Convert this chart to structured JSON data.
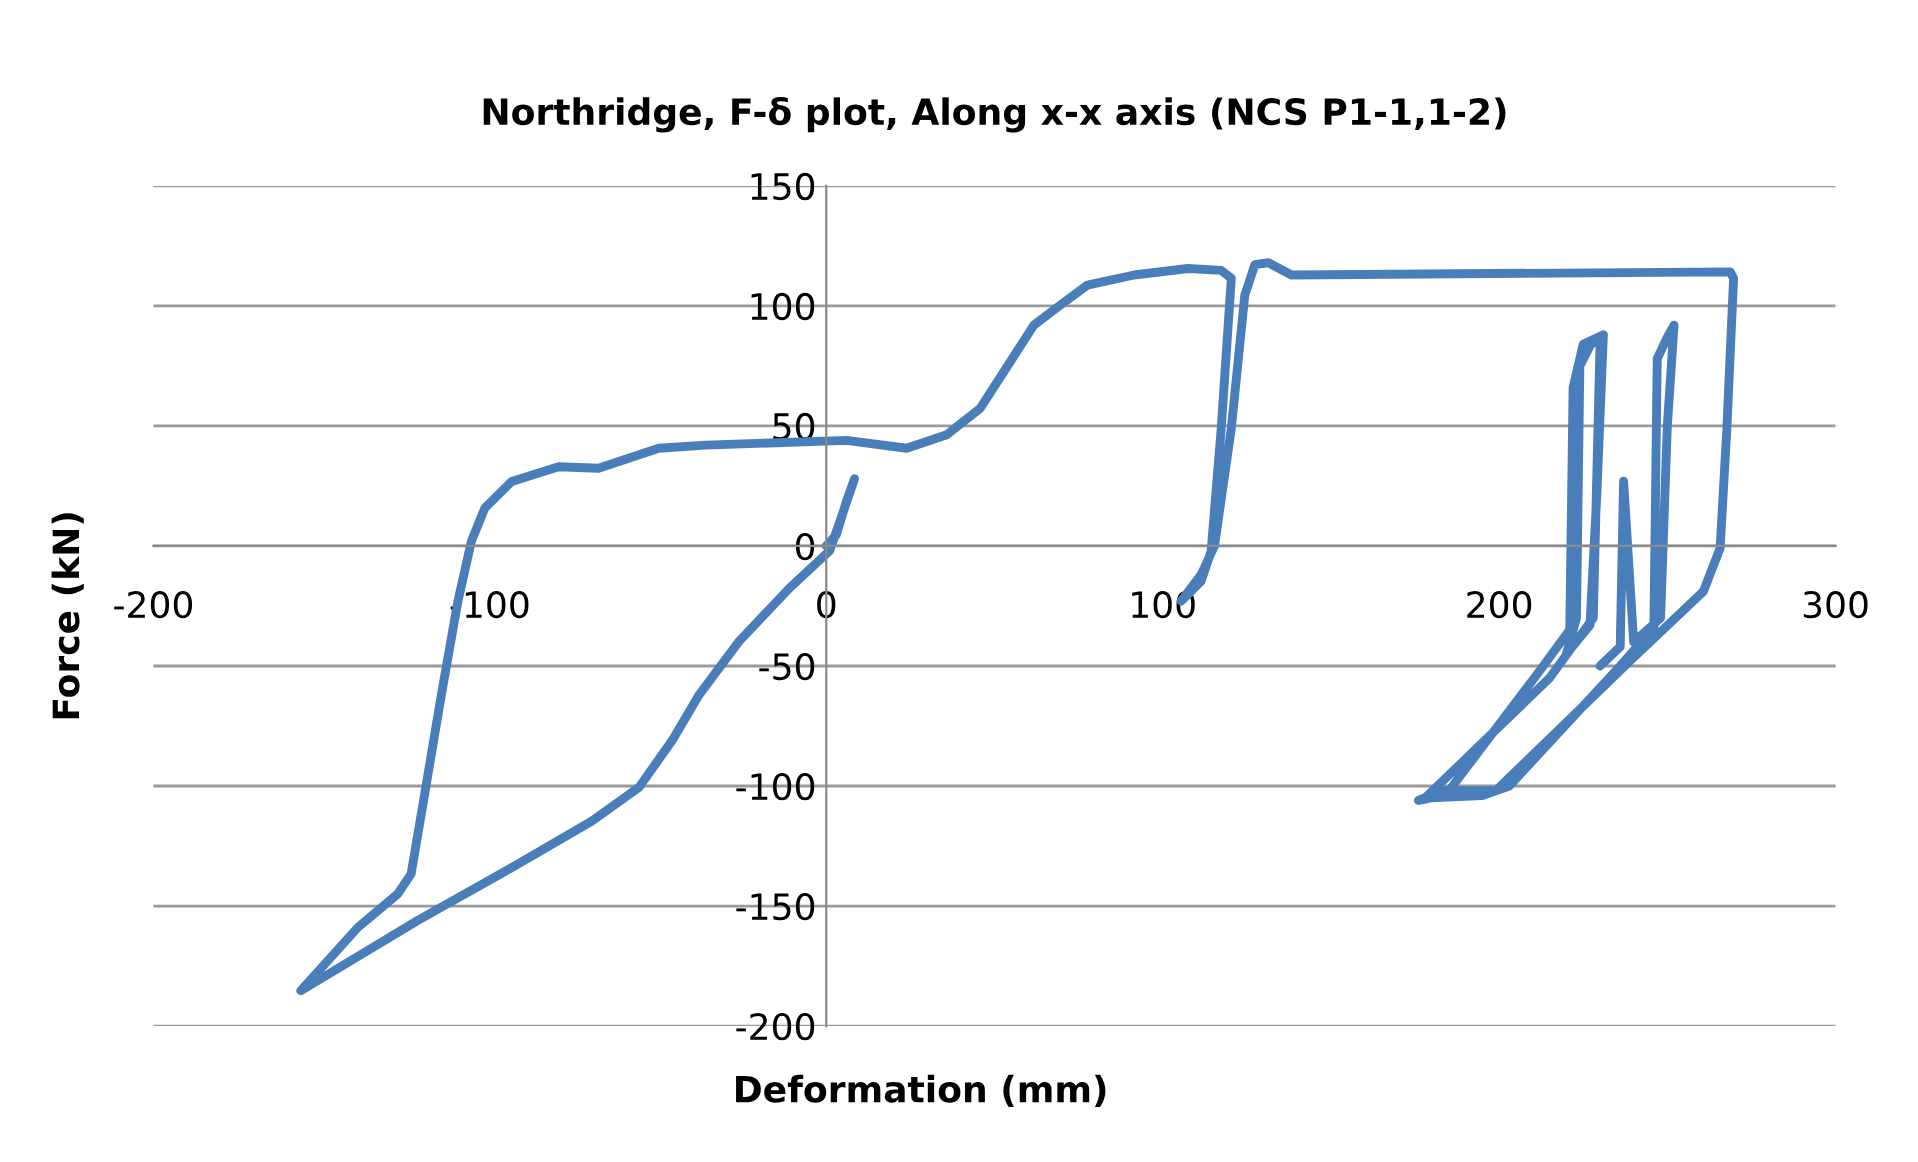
{
  "chart_data": {
    "type": "line",
    "title": "Northridge, F-δ plot, Along x-x axis (NCS P1-1,1-2)",
    "xlabel": "Deformation (mm)",
    "ylabel": "Force (kN)",
    "xlim": [
      -200,
      300
    ],
    "xticks": [
      -200,
      -100,
      0,
      100,
      200,
      300
    ],
    "ylim": [
      -200,
      150
    ],
    "yticks": [
      -200,
      -150,
      -100,
      -50,
      0,
      50,
      100,
      150
    ],
    "grid": "y",
    "legend": false,
    "marker": "none",
    "line_style": "solid",
    "series": [
      {
        "color": "#4a7ebb",
        "x": [
          0,
          3,
          6,
          8.4,
          4,
          1,
          -10.9,
          -25.9,
          -37.8,
          -45.8,
          -55.7,
          -69.7,
          -93.5,
          -121.4,
          -156.2,
          -139.3,
          -127.4,
          -123.4,
          -119.4,
          -114.4,
          -109.5,
          -105.5,
          -101.5,
          -93.5,
          -79.6,
          -67.7,
          -49.8,
          -35.8,
          6,
          23.9,
          35.8,
          45.8,
          61.7,
          69.6,
          77.6,
          91.5,
          107.5,
          117.4,
          120.4,
          117.4,
          114.4,
          111.4,
          105.5,
          111.4,
          115.4,
          120.4,
          124.4,
          127.4,
          131.4,
          138.3,
          268.7,
          269.7,
          267.7,
          265.7,
          260.7,
          238.8,
          199,
          183,
          176,
          184,
          211,
          221,
          222,
          225,
          231,
          229,
          227,
          220,
          223,
          224,
          228,
          230,
          228,
          215,
          178,
          195,
          203,
          236,
          246,
          247,
          250,
          252,
          250,
          248,
          240,
          237,
          236,
          230
        ],
        "values": [
          0,
          4.7,
          18.6,
          28,
          10,
          -2,
          -17.5,
          -39.7,
          -62,
          -81,
          -100.6,
          -114.6,
          -134,
          -156,
          -185.3,
          -159,
          -145,
          -136.6,
          -103.5,
          -61.9,
          -23,
          1.9,
          15.8,
          26.9,
          33,
          32.4,
          40.7,
          42,
          44,
          40.7,
          46.3,
          57.4,
          92,
          100.4,
          108.7,
          112.9,
          115.6,
          114.8,
          111.5,
          49,
          -2.2,
          -14.7,
          -23,
          -12,
          0,
          49,
          104.5,
          117.2,
          118,
          112.9,
          114.2,
          111.5,
          49,
          -0.9,
          -19,
          -48,
          -102,
          -102,
          -106,
          -104,
          -54,
          -35,
          66,
          84,
          88,
          20,
          -33,
          -45,
          -30,
          75,
          86,
          84,
          -30,
          -55,
          -105,
          -104,
          -100,
          -50,
          -34,
          78,
          87,
          92,
          50,
          -30,
          -40,
          27,
          -42,
          -50
        ]
      }
    ]
  }
}
